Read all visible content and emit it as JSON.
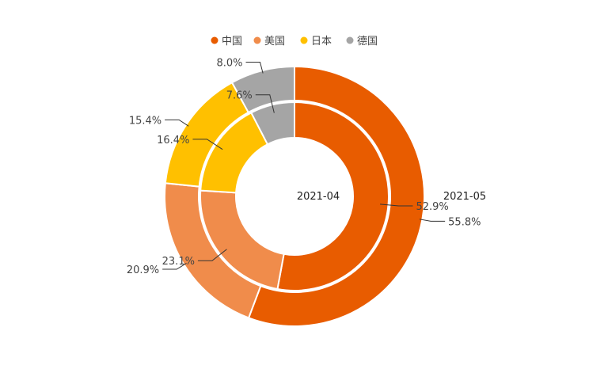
{
  "chart_data": {
    "type": "pie",
    "legend": {
      "position": "top",
      "items": [
        {
          "name": "中国",
          "color": "#E85C00"
        },
        {
          "name": "美国",
          "color": "#F08C4B"
        },
        {
          "name": "日本",
          "color": "#FFC000"
        },
        {
          "name": "德国",
          "color": "#A5A5A5"
        }
      ]
    },
    "categories": [
      "中国",
      "美国",
      "日本",
      "德国"
    ],
    "series": [
      {
        "name": "2021-04",
        "ring": "inner",
        "values": [
          52.9,
          23.1,
          16.4,
          7.6
        ],
        "labels": [
          "52.9%",
          "23.1%",
          "16.4%",
          "7.6%"
        ]
      },
      {
        "name": "2021-05",
        "ring": "outer",
        "values": [
          55.8,
          20.9,
          15.4,
          8.0
        ],
        "labels": [
          "55.8%",
          "20.9%",
          "15.4%",
          "8.0%"
        ]
      }
    ]
  }
}
